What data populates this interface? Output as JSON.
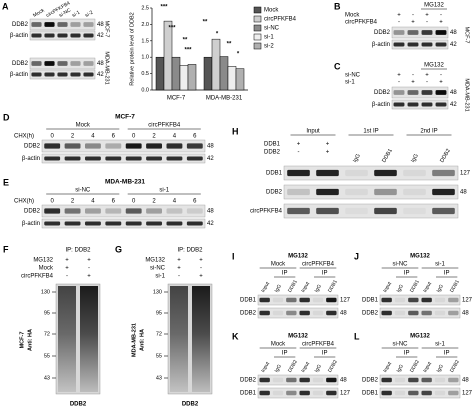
{
  "chart_data": {
    "type": "bar",
    "label": "A",
    "y_label": "Relative protein level of DDB2",
    "categories": [
      "MCF-7",
      "MDA-MB-231"
    ],
    "series": [
      {
        "name": "Mock",
        "color": "#555555",
        "values": [
          1.0,
          1.0
        ]
      },
      {
        "name": "circPFKFB4",
        "color": "#cfcfcf",
        "values": [
          2.1,
          1.55
        ]
      },
      {
        "name": "si-NC",
        "color": "#8a8a8a",
        "values": [
          1.0,
          1.02
        ]
      },
      {
        "name": "si-1",
        "color": "#eeeeee",
        "values": [
          0.75,
          0.72
        ]
      },
      {
        "name": "si-2",
        "color": "#b0b0b0",
        "values": [
          0.78,
          0.65
        ]
      }
    ],
    "ylim": [
      0,
      2.5
    ],
    "yticks": [
      {
        "value": 0,
        "label": "0.0"
      },
      0.5,
      {
        "value": 1,
        "label": "1.0"
      },
      1.5,
      {
        "value": 2,
        "label": "2.0"
      },
      2.5
    ],
    "annotations": [
      "***",
      "***",
      "**",
      "***",
      "**",
      "*",
      "**",
      "*"
    ]
  },
  "panel_a": {
    "label": "A",
    "columns": [
      "Mock",
      "circPFKFB4",
      "si-NC",
      "si-1",
      "si-2"
    ],
    "blocks": [
      {
        "cell": "MCF-7",
        "rows": [
          {
            "name": "DDB2",
            "kda": "48"
          },
          {
            "name": "β-actin",
            "kda": "42"
          }
        ]
      },
      {
        "cell": "MDA-MB-231",
        "rows": [
          {
            "name": "DDB2",
            "kda": "48"
          },
          {
            "name": "β-actin",
            "kda": "42"
          }
        ]
      }
    ]
  },
  "panel_b": {
    "label": "B",
    "header": "MG132",
    "treatments": [
      {
        "name": "Mock",
        "signs": [
          "+",
          "-",
          "+",
          "-"
        ]
      },
      {
        "name": "circPFKFB4",
        "signs": [
          "-",
          "+",
          "-",
          "+"
        ]
      }
    ],
    "rows": [
      {
        "name": "DDB2",
        "kda": "48"
      },
      {
        "name": "β-actin",
        "kda": "42"
      }
    ],
    "cell": "MCF-7"
  },
  "panel_c": {
    "label": "C",
    "header": "MG132",
    "treatments": [
      {
        "name": "si-NC",
        "signs": [
          "+",
          "-",
          "+",
          "-"
        ]
      },
      {
        "name": "si-1",
        "signs": [
          "-",
          "+",
          "-",
          "+"
        ]
      }
    ],
    "rows": [
      {
        "name": "DDB2",
        "kda": "48"
      },
      {
        "name": "β-actin",
        "kda": "42"
      }
    ],
    "cell": "MDA-MB-231"
  },
  "panel_d": {
    "label": "D",
    "title": "MCF-7",
    "groups": [
      "Mock",
      "circPFKFB4"
    ],
    "time_label": "CHX(h)",
    "times": [
      "0",
      "2",
      "4",
      "6",
      "0",
      "2",
      "4",
      "6"
    ],
    "rows": [
      {
        "name": "DDB2",
        "kda": "48"
      },
      {
        "name": "β-actin",
        "kda": "42"
      }
    ]
  },
  "panel_e": {
    "label": "E",
    "title": "MDA-MB-231",
    "groups": [
      "si-NC",
      "si-1"
    ],
    "time_label": "CHX(h)",
    "times": [
      "0",
      "2",
      "4",
      "6",
      "0",
      "2",
      "4",
      "6"
    ],
    "rows": [
      {
        "name": "DDB2",
        "kda": "48"
      },
      {
        "name": "β-actin",
        "kda": "42"
      }
    ]
  },
  "panel_f": {
    "label": "F",
    "header": "IP: DDB2",
    "treatments": [
      {
        "name": "MG132",
        "signs": [
          "+",
          "+"
        ]
      },
      {
        "name": "Mock",
        "signs": [
          "+",
          "-"
        ]
      },
      {
        "name": "circPFKFB4",
        "signs": [
          "-",
          "+"
        ]
      }
    ],
    "markers": [
      "130",
      "95",
      "72",
      "55",
      "43"
    ],
    "cell": "MCF-7",
    "antibody": "Anti: HA",
    "footer": "DDB2"
  },
  "panel_g": {
    "label": "G",
    "header": "IP: DDB2",
    "treatments": [
      {
        "name": "MG132",
        "signs": [
          "+",
          "+"
        ]
      },
      {
        "name": "si-NC",
        "signs": [
          "+",
          "-"
        ]
      },
      {
        "name": "si-1",
        "signs": [
          "-",
          "+"
        ]
      }
    ],
    "markers": [
      "130",
      "95",
      "72",
      "55",
      "43"
    ],
    "cell": "MDA-MB-231",
    "antibody": "Anti: HA",
    "footer": "DDB2"
  },
  "panel_h": {
    "label": "H",
    "groups": [
      "Input",
      "1st IP",
      "2nd IP"
    ],
    "treatments": [
      {
        "name": "DDB1",
        "signs": [
          "+",
          "+"
        ]
      },
      {
        "name": "DDB2",
        "signs": [
          "-",
          "+"
        ]
      }
    ],
    "lanes": [
      "IgG",
      "DDB1",
      "IgG",
      "DDB2"
    ],
    "rows": [
      {
        "name": "DDB1",
        "kda": "127"
      },
      {
        "name": "DDB2",
        "kda": "48"
      },
      {
        "name": "circPFKFB4"
      }
    ]
  },
  "panel_i": {
    "label": "I",
    "header": "MG132",
    "groups": [
      {
        "name": "Mock",
        "ip": "IP",
        "lanes": [
          "Input",
          "IgG",
          "DDB1"
        ]
      },
      {
        "name": "circPFKFB4",
        "ip": "IP",
        "lanes": [
          "Input",
          "IgG",
          "DDB1"
        ]
      }
    ],
    "rows": [
      {
        "name": "DDB1",
        "kda": "127"
      },
      {
        "name": "DDB2",
        "kda": "48"
      }
    ]
  },
  "panel_j": {
    "label": "J",
    "header": "MG132",
    "groups": [
      {
        "name": "si-NC",
        "ip": "IP",
        "lanes": [
          "Input",
          "IgG",
          "DDB1"
        ]
      },
      {
        "name": "si-1",
        "ip": "IP",
        "lanes": [
          "Input",
          "IgG",
          "DDB1"
        ]
      }
    ],
    "rows": [
      {
        "name": "DDB1",
        "kda": "127"
      },
      {
        "name": "DDB2",
        "kda": "48"
      }
    ]
  },
  "panel_k": {
    "label": "K",
    "header": "MG132",
    "groups": [
      {
        "name": "Mock",
        "ip": "IP",
        "lanes": [
          "Input",
          "IgG",
          "DDB2"
        ]
      },
      {
        "name": "circPFKFB4",
        "ip": "IP",
        "lanes": [
          "Input",
          "IgG",
          "DDB2"
        ]
      }
    ],
    "rows": [
      {
        "name": "DDB2",
        "kda": "48"
      },
      {
        "name": "DDB1",
        "kda": "127"
      }
    ]
  },
  "panel_l": {
    "label": "L",
    "header": "MG132",
    "groups": [
      {
        "name": "si-NC",
        "ip": "IP",
        "lanes": [
          "Input",
          "IgG",
          "DDB2"
        ]
      },
      {
        "name": "si-1",
        "ip": "IP",
        "lanes": [
          "Input",
          "IgG",
          "DDB2"
        ]
      }
    ],
    "rows": [
      {
        "name": "DDB2",
        "kda": "48"
      },
      {
        "name": "DDB1",
        "kda": "127"
      }
    ]
  }
}
